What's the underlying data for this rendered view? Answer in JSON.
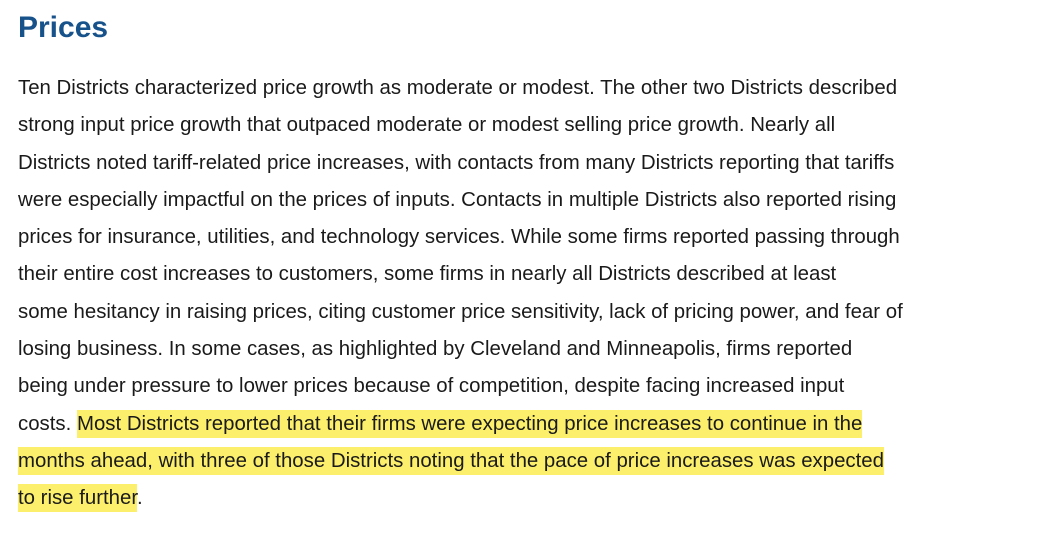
{
  "heading": "Prices",
  "paragraph": {
    "rows": [
      [
        {
          "text": "Ten Districts characterized price growth as moderate or modest. The other two Districts described"
        }
      ],
      [
        {
          "text": "strong input price growth that outpaced moderate or modest selling price growth. Nearly all"
        }
      ],
      [
        {
          "text": "Districts noted tariff-related price increases, with contacts from many Districts reporting that tariffs"
        }
      ],
      [
        {
          "text": "were especially impactful on the prices of inputs. Contacts in multiple Districts also reported rising"
        }
      ],
      [
        {
          "text": "prices for insurance, utilities, and technology services. While some firms reported passing through"
        }
      ],
      [
        {
          "text": "their entire cost increases to customers, some firms in nearly all Districts described at least"
        }
      ],
      [
        {
          "text": "some hesitancy in raising prices, citing customer price sensitivity, lack of pricing power, and fear of"
        }
      ],
      [
        {
          "text": "losing business. In some cases, as highlighted by Cleveland and Minneapolis, firms reported"
        }
      ],
      [
        {
          "text": "being under pressure to lower prices because of competition, despite facing increased input"
        }
      ],
      [
        {
          "text": "costs."
        },
        {
          "text": "Most Districts reported that their firms were expecting price increases to continue in the",
          "highlight": true
        }
      ],
      [
        {
          "text": "months ahead, with three of those Districts noting that the pace of price increases was expected",
          "highlight": true
        }
      ],
      [
        {
          "text": "to rise further",
          "highlight": true
        },
        {
          "text": "."
        }
      ]
    ]
  }
}
